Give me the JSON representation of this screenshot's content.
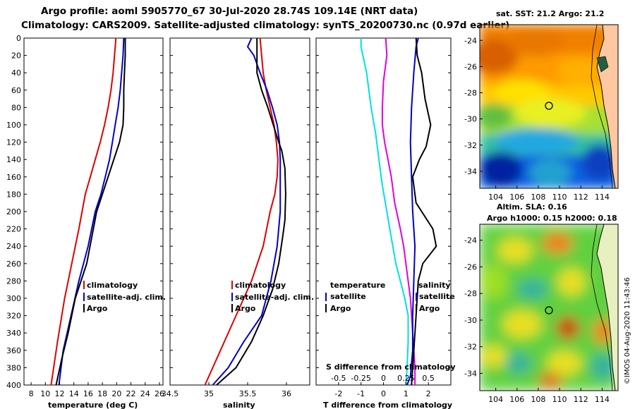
{
  "title_line1": "Argo profile: aoml 5905770_67 30-Jul-2020 28.74S 109.14E (NRT data)",
  "title_line2": "Climatology: CARS2009. Satellite-adjusted climatology: synTS_20200730.nc (0.97d earlier)",
  "colors": {
    "climatology": "#e00000",
    "satellite": "#0000cc",
    "argo": "#000000",
    "t_diff": "#00e0e0",
    "s_diff": "#e000e0"
  },
  "legend": {
    "climatology": "climatology",
    "satellite_adj": "satellite-adj. clim.",
    "argo": "Argo",
    "temperature": "temperature",
    "salinity": "salinity",
    "satellite": "satellite"
  },
  "chart_data": [
    {
      "type": "line",
      "panel": "temperature",
      "xlabel": "temperature (deg C)",
      "ylabel": "depth",
      "xlim": [
        7,
        26.5
      ],
      "ylim": [
        0,
        400
      ],
      "xticks": [
        8,
        10,
        12,
        14,
        16,
        18,
        20,
        22,
        24,
        26
      ],
      "yticks": [
        0,
        20,
        40,
        60,
        80,
        100,
        120,
        140,
        160,
        180,
        200,
        220,
        240,
        260,
        280,
        300,
        320,
        340,
        360,
        380,
        400
      ],
      "series": [
        {
          "name": "climatology",
          "x": [
            19.9,
            19.7,
            19.5,
            19.2,
            18.8,
            18.3,
            17.7,
            17.0,
            16.3,
            15.6,
            14.7,
            13.7,
            12.7,
            11.7,
            10.8
          ],
          "y": [
            0,
            20,
            40,
            60,
            80,
            100,
            120,
            140,
            160,
            180,
            220,
            260,
            300,
            350,
            400
          ]
        },
        {
          "name": "satellite-adj. clim.",
          "x": [
            21.0,
            20.9,
            20.7,
            20.5,
            20.2,
            19.8,
            19.4,
            19.0,
            18.4,
            17.8,
            17.0,
            16.0,
            14.7,
            13.6,
            12.5,
            11.9
          ],
          "y": [
            0,
            20,
            40,
            60,
            80,
            100,
            120,
            140,
            160,
            180,
            200,
            240,
            280,
            320,
            360,
            400
          ]
        },
        {
          "name": "Argo",
          "x": [
            21.2,
            21.2,
            21.1,
            21.0,
            21.0,
            20.9,
            20.4,
            19.6,
            18.8,
            18.0,
            17.2,
            15.8,
            14.2,
            13.2,
            12.3,
            11.5
          ],
          "y": [
            0,
            20,
            40,
            60,
            80,
            100,
            120,
            140,
            160,
            180,
            200,
            260,
            300,
            340,
            370,
            400
          ]
        }
      ]
    },
    {
      "type": "line",
      "panel": "salinity",
      "xlabel": "salinity",
      "ylabel": "depth",
      "xlim": [
        34.5,
        36.3
      ],
      "ylim": [
        0,
        400
      ],
      "xticks": [
        34.5,
        35,
        35.5,
        36
      ],
      "yticks": [
        0,
        20,
        40,
        60,
        80,
        100,
        120,
        140,
        160,
        180,
        200,
        220,
        240,
        260,
        280,
        300,
        320,
        340,
        360,
        380,
        400
      ],
      "series": [
        {
          "name": "climatology",
          "x": [
            35.66,
            35.68,
            35.7,
            35.74,
            35.79,
            35.84,
            35.87,
            35.89,
            35.88,
            35.85,
            35.79,
            35.7,
            35.55,
            35.35,
            35.15,
            34.95
          ],
          "y": [
            0,
            20,
            40,
            60,
            80,
            100,
            120,
            140,
            160,
            180,
            200,
            240,
            280,
            320,
            360,
            400
          ]
        },
        {
          "name": "satellite-adj. clim.",
          "x": [
            35.55,
            35.5,
            35.58,
            35.66,
            35.75,
            35.82,
            35.88,
            35.91,
            35.92,
            35.92,
            35.92,
            35.88,
            35.8,
            35.68,
            35.45,
            35.25,
            35.05
          ],
          "y": [
            0,
            10,
            20,
            40,
            60,
            80,
            100,
            120,
            140,
            160,
            200,
            240,
            280,
            320,
            350,
            380,
            400
          ]
        },
        {
          "name": "Argo",
          "x": [
            35.62,
            35.62,
            35.62,
            35.68,
            35.76,
            35.83,
            35.9,
            35.94,
            35.98,
            35.99,
            35.98,
            35.95,
            35.9,
            35.82,
            35.7,
            35.55,
            35.35,
            35.1
          ],
          "y": [
            0,
            20,
            40,
            60,
            80,
            100,
            120,
            130,
            150,
            180,
            210,
            230,
            260,
            290,
            320,
            350,
            380,
            400
          ]
        }
      ]
    },
    {
      "type": "line",
      "panel": "difference",
      "xlabel": "T difference from climatology",
      "xlabel_top": "S difference from climatology",
      "ylim": [
        0,
        400
      ],
      "xlim": [
        -3,
        3
      ],
      "xticks": [
        -2,
        -1,
        0,
        1,
        2
      ],
      "xticks_s": [
        -0.5,
        -0.25,
        0,
        0.25,
        0.5
      ],
      "yticks": [
        0,
        20,
        40,
        60,
        80,
        100,
        120,
        140,
        160,
        180,
        200,
        220,
        240,
        260,
        280,
        300,
        320,
        340,
        360,
        380,
        400
      ],
      "series": [
        {
          "name": "temperature satellite",
          "x": [
            -1.0,
            -1.0,
            -0.75,
            -0.55,
            -0.35,
            -0.2,
            -0.05,
            0.15,
            0.35,
            0.55,
            0.75,
            0.95,
            1.1,
            1.1,
            1.05,
            1.0
          ],
          "y": [
            0,
            10,
            40,
            80,
            110,
            140,
            170,
            200,
            230,
            260,
            280,
            300,
            320,
            350,
            380,
            400
          ]
        },
        {
          "name": "temperature Argo",
          "x": [
            0.1,
            0.15,
            0.0,
            -0.05,
            -0.05,
            0.05,
            0.2,
            0.35,
            0.5,
            0.75,
            0.9,
            1.0,
            1.1,
            1.2,
            1.3,
            1.4,
            1.4
          ],
          "y": [
            0,
            20,
            50,
            80,
            100,
            120,
            140,
            160,
            190,
            220,
            240,
            260,
            280,
            300,
            340,
            380,
            400
          ]
        },
        {
          "name": "salinity satellite",
          "x": [
            1.55,
            1.45,
            1.35,
            1.25,
            1.2,
            1.25,
            1.3,
            1.4,
            1.35,
            1.3,
            1.3,
            1.2,
            1.05
          ],
          "y": [
            0,
            10,
            40,
            80,
            120,
            160,
            200,
            240,
            280,
            320,
            360,
            390,
            400
          ]
        },
        {
          "name": "salinity Argo",
          "x": [
            1.45,
            1.5,
            1.7,
            1.85,
            2.1,
            1.9,
            1.6,
            1.3,
            1.45,
            2.2,
            2.35,
            1.75,
            1.55,
            1.45,
            1.35,
            1.25
          ],
          "y": [
            0,
            20,
            40,
            70,
            100,
            125,
            140,
            160,
            190,
            220,
            240,
            260,
            280,
            320,
            360,
            400
          ]
        }
      ]
    },
    {
      "type": "heatmap",
      "panel": "map_sst",
      "title": "sat. SST: 21.2 Argo: 21.2",
      "xticks": [
        104,
        106,
        108,
        110,
        112,
        114
      ],
      "yticks": [
        -24,
        -26,
        -28,
        -30,
        -32,
        -34
      ],
      "xlim": [
        102.5,
        115.5
      ],
      "ylim": [
        -35.3,
        -22.8
      ],
      "marker": {
        "lon": 109.14,
        "lat": -28.74
      }
    },
    {
      "type": "heatmap",
      "panel": "map_sla",
      "title_line1": "Altim. SLA: 0.16",
      "title_line2": "Argo h1000: 0.15 h2000: 0.18",
      "xticks": [
        104,
        106,
        108,
        110,
        112,
        114
      ],
      "yticks": [
        -24,
        -26,
        -28,
        -30,
        -32,
        -34
      ],
      "xlim": [
        102.5,
        115.5
      ],
      "ylim": [
        -35.3,
        -22.8
      ],
      "marker": {
        "lon": 109.14,
        "lat": -28.74
      }
    }
  ],
  "credit": "©IMOS 04-Aug-2020 11:43:46"
}
